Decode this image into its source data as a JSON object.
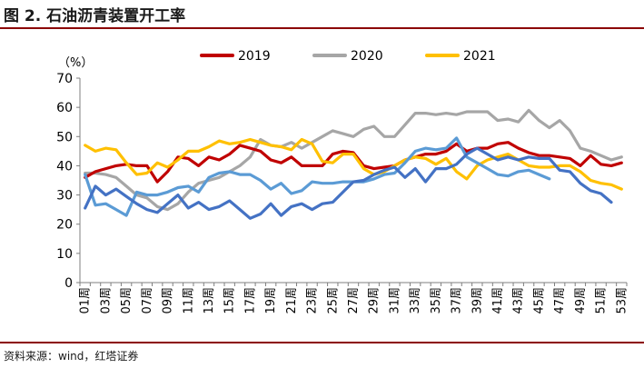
{
  "page": {
    "title": "图 2. 石油沥青装置开工率",
    "source": "资料来源：wind，红塔证券"
  },
  "chart_data": {
    "type": "line",
    "title": "",
    "ylabel": "（%）",
    "xlabel": "",
    "ylim": [
      0,
      70
    ],
    "yticks": [
      0,
      10,
      20,
      30,
      40,
      50,
      60,
      70
    ],
    "xticks": [
      "01周",
      "03周",
      "05周",
      "07周",
      "09周",
      "11周",
      "13周",
      "15周",
      "17周",
      "19周",
      "21周",
      "23周",
      "25周",
      "27周",
      "29周",
      "31周",
      "33周",
      "35周",
      "37周",
      "39周",
      "41周",
      "43周",
      "45周",
      "47周",
      "49周",
      "51周",
      "53周"
    ],
    "legend_position": "top-center",
    "series": [
      {
        "name": "2019",
        "color": "#c00000",
        "values": [
          36,
          38,
          39,
          40,
          40.5,
          40,
          40,
          34.5,
          38,
          43,
          42.5,
          40,
          43,
          42,
          44,
          47,
          46,
          45,
          42,
          41,
          43,
          40,
          40,
          40,
          44,
          45,
          44.5,
          40,
          39,
          39.5,
          40,
          42,
          43,
          44,
          44,
          45,
          47.5,
          45,
          46,
          46,
          47.5,
          48,
          46,
          44.5,
          43.5,
          43.5,
          43,
          42.5,
          40,
          43.5,
          40.5,
          40,
          41
        ]
      },
      {
        "name": "2020",
        "color": "#a6a6a6",
        "values": [
          37.5,
          37.5,
          37,
          36,
          33,
          30,
          29,
          26,
          25,
          27,
          31,
          34,
          35,
          36,
          38,
          40,
          43,
          49,
          47,
          46.5,
          48,
          46,
          48,
          50,
          52,
          51,
          50,
          52.5,
          53.5,
          50,
          50,
          54,
          58,
          58,
          57.5,
          58,
          57.5,
          58.5,
          58.5,
          58.5,
          55.5,
          56,
          55,
          59,
          55.5,
          53,
          55.5,
          52,
          46,
          45,
          43.5,
          42,
          43
        ]
      },
      {
        "name": "2021",
        "color": "#ffc000",
        "values": [
          47,
          45,
          46,
          45.5,
          41,
          37,
          37.5,
          41,
          39.5,
          42,
          45,
          45,
          46.5,
          48.5,
          47.5,
          48,
          49,
          48,
          47,
          46.5,
          45.5,
          49,
          47.5,
          41.5,
          41,
          44,
          44,
          39,
          37,
          38,
          40,
          42,
          43,
          42.5,
          40.5,
          42.5,
          38,
          35.5,
          40,
          42,
          43,
          44,
          42,
          40,
          39.5,
          39.5,
          40,
          40,
          38,
          35,
          34,
          33.5,
          32
        ]
      },
      {
        "name": "",
        "color": "#4472c4",
        "values": [
          25.5,
          33,
          30,
          32,
          29.5,
          27,
          25,
          24,
          27,
          30,
          25.5,
          27.5,
          25,
          26,
          28,
          25,
          22,
          23.5,
          27,
          23,
          26,
          27,
          25,
          27,
          27.5,
          31,
          34.5,
          35,
          37,
          38.5,
          39.5,
          36,
          39,
          34.5,
          39,
          39,
          40.5,
          44,
          46,
          44,
          42,
          43,
          42,
          43,
          42.5,
          42.5,
          38.5,
          38,
          34,
          31.5,
          30.5,
          27.5
        ]
      },
      {
        "name": "",
        "color": "#5b9bd5",
        "values": [
          37,
          26.5,
          27,
          25,
          23,
          31,
          30,
          30,
          31,
          32.5,
          33,
          31,
          36,
          37.5,
          38,
          37,
          37,
          35,
          32,
          34,
          30.5,
          31.5,
          34.5,
          34,
          34,
          34.5,
          34.5,
          34.5,
          35.5,
          37,
          37.5,
          41,
          45,
          46,
          45.5,
          46,
          49.5,
          43,
          41,
          39,
          37,
          36.5,
          38,
          38.5,
          37,
          35.5
        ]
      }
    ]
  }
}
